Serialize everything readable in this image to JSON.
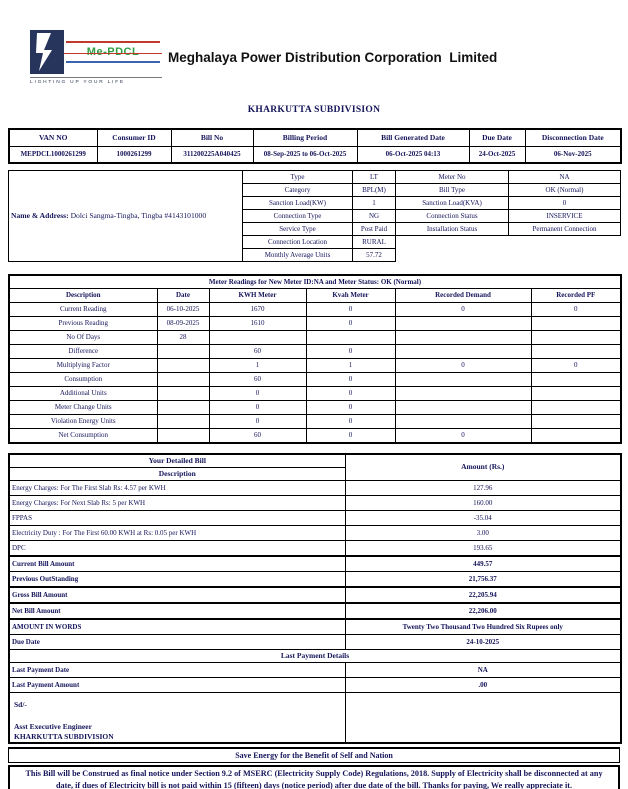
{
  "colors": {
    "text": "#14145a",
    "border": "#000000",
    "logo_navy": "#27355d",
    "logo_green": "#2f9e44",
    "logo_red": "#c0392b",
    "logo_blue": "#3a66b0",
    "title_black": "#111111"
  },
  "header": {
    "logo": {
      "brand": "Me-PDCL",
      "tagline": "LIGHTING UP YOUR LIFE"
    },
    "company": "Meghalaya Power Distribution Corporation  Limited",
    "subdivision": "KHARKUTTA SUBDIVISION"
  },
  "summary_table": {
    "headers": [
      "VAN NO",
      "Consumer ID",
      "Bill No",
      "Billing Period",
      "Bill Generated Date",
      "Due Date",
      "Disconnection Date"
    ],
    "values": [
      "MEPDCL1000261299",
      "1000261299",
      "311200225A040425",
      "08-Sep-2025 to 06-Oct-2025",
      "06-Oct-2025 04:13",
      "24-Oct-2025",
      "06-Nov-2025"
    ]
  },
  "account_info": {
    "name_address_label": "Name & Address:",
    "name_address_value": "Dolci Sangma-Tingba, Tingba #4143101000",
    "rows": [
      {
        "label": "Type",
        "value": "LT",
        "label2": "Meter No",
        "value2": "NA"
      },
      {
        "label": "Category",
        "value": "BPL(M)",
        "label2": "Bill Type",
        "value2": "OK (Normal)"
      },
      {
        "label": "Sanction Load(KW)",
        "value": "1",
        "label2": "Sanction Load(KVA)",
        "value2": "0"
      },
      {
        "label": "Connection Type",
        "value": "NG",
        "label2": "Connection Status",
        "value2": "INSERVICE"
      },
      {
        "label": "Service Type",
        "value": "Post Paid",
        "label2": "Installation Status",
        "value2": "Permanent Connection"
      },
      {
        "label": "Connection Location",
        "value": "RURAL",
        "label2": null,
        "value2": null
      },
      {
        "label": "Monthly Average Units",
        "value": "57.72",
        "label2": null,
        "value2": null
      }
    ]
  },
  "meter_readings": {
    "title": "Meter Readings for New Meter ID:NA and Meter Status: OK (Normal)",
    "headers": [
      "Description",
      "Date",
      "KWH Meter",
      "Kvah Meter",
      "Recorded Demand",
      "Recorded PF"
    ],
    "rows": [
      [
        "Current Reading",
        "06-10-2025",
        "1670",
        "0",
        "0",
        "0"
      ],
      [
        "Previous Reading",
        "08-09-2025",
        "1610",
        "0",
        "",
        ""
      ],
      [
        "No Of Days",
        "28",
        "",
        "",
        "",
        ""
      ],
      [
        "Difference",
        "",
        "60",
        "0",
        "",
        ""
      ],
      [
        "Multiplying Factor",
        "",
        "1",
        "1",
        "0",
        "0"
      ],
      [
        "Consumption",
        "",
        "60",
        "0",
        "",
        ""
      ],
      [
        "Additional Units",
        "",
        "0",
        "0",
        "",
        ""
      ],
      [
        "Meter Change Units",
        "",
        "0",
        "0",
        "",
        ""
      ],
      [
        "Violation Energy Units",
        "",
        "0",
        "0",
        "",
        ""
      ],
      [
        "Net Consumption",
        "",
        "60",
        "0",
        "0",
        ""
      ]
    ]
  },
  "detailed_bill": {
    "title": "Your Detailed Bill",
    "description_header": "Description",
    "amount_header": "Amount (Rs.)",
    "rows": [
      {
        "label": "Energy Charges: For The First Slab Rs: 4.57 per KWH",
        "amount": "127.96",
        "bold": false
      },
      {
        "label": "Energy Charges: For Next Slab Rs: 5 per KWH",
        "amount": "160.00",
        "bold": false
      },
      {
        "label": "FPPAS",
        "amount": "-35.04",
        "bold": false
      },
      {
        "label": "Electricity Duty : For The First 60.00 KWH at Rs: 0.05 per KWH",
        "amount": "3.00",
        "bold": false
      },
      {
        "label": "DPC",
        "amount": "193.65",
        "bold": false
      },
      {
        "label": "Current Bill Amount",
        "amount": "449.57",
        "bold": true,
        "top_thick": true
      },
      {
        "label": "Previous OutStanding",
        "amount": "21,756.37",
        "bold": true
      },
      {
        "label": "Gross Bill Amount",
        "amount": "22,205.94",
        "bold": true,
        "top_thick": true,
        "bottom_thick": true
      },
      {
        "label": "Net Bill Amount",
        "amount": "22,206.00",
        "bold": true,
        "bottom_thick": true
      },
      {
        "label": "AMOUNT IN WORDS",
        "amount": "Twenty Two Thousand Two Hundred Six Rupees only",
        "bold": true
      },
      {
        "label": "Due Date",
        "amount": "24-10-2025",
        "bold": true
      }
    ],
    "last_payment": {
      "title": "Last Payment Details",
      "rows": [
        {
          "label": "Last Payment Date",
          "amount": "NA"
        },
        {
          "label": "Last Payment Amount",
          "amount": ".00"
        }
      ]
    },
    "signature": {
      "sd": "Sd/-",
      "designation": "Asst Executive Engineer",
      "office": "KHARKUTTA SUBDIVISION"
    }
  },
  "save_energy": "Save Energy for the Benefit of Self and Nation",
  "footer_notice": "This Bill will be Construed as final notice under Section 9.2 of MSERC (Electricity Supply Code) Regulations, 2018. Supply of Electricity shall be disconnected at any date, if dues of Electricity bill is not paid within 15 (fifteen) days (notice period) after due date of the bill. Thanks for paying, We really appreciate it."
}
